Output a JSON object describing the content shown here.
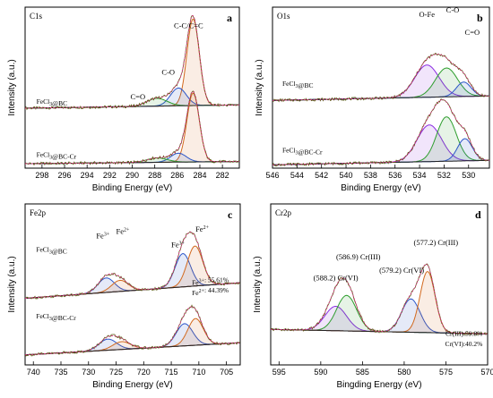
{
  "chart_data": [
    {
      "id": "a",
      "type": "line",
      "core_level": "C1s",
      "panel_letter": "a",
      "xlabel": "Binding Energy (eV)",
      "ylabel": "Intensity (a.u.)",
      "xlim": [
        299.5,
        280.5
      ],
      "xticks": [
        "298",
        "296",
        "294",
        "292",
        "290",
        "288",
        "286",
        "284",
        "282"
      ],
      "tick_values": [
        298,
        296,
        294,
        292,
        290,
        288,
        286,
        284,
        282
      ],
      "spectra": [
        {
          "sample": "FeCl3@BC",
          "offset": 0.52,
          "background": [
            0.02,
            0.05
          ],
          "peaks": [
            {
              "label": "C-C/C=C",
              "center": 284.6,
              "width": 0.55,
              "amp": 0.78,
              "color": "#d2691e"
            },
            {
              "label": "C-O",
              "center": 285.9,
              "width": 0.7,
              "amp": 0.16,
              "color": "#2b55c8"
            },
            {
              "label": "C=O",
              "center": 287.8,
              "width": 0.9,
              "amp": 0.07,
              "color": "#2e9e2e"
            }
          ]
        },
        {
          "sample": "FeCl3@BC-Cr",
          "offset": 0.02,
          "background": [
            0.02,
            0.04
          ],
          "peaks": [
            {
              "label": "C-C/C=C",
              "center": 284.6,
              "width": 0.55,
              "amp": 0.62,
              "color": "#d2691e"
            },
            {
              "label": "C-O",
              "center": 285.9,
              "width": 0.7,
              "amp": 0.08,
              "color": "#2b55c8"
            },
            {
              "label": "C=O",
              "center": 287.8,
              "width": 0.9,
              "amp": 0.04,
              "color": "#2e9e2e"
            }
          ]
        }
      ],
      "annotations": [
        {
          "text": "C-C/C=C",
          "x": 285.0,
          "y": 1.26
        },
        {
          "text": "C-O",
          "x": 286.8,
          "y": 0.84
        },
        {
          "text": "C=O",
          "x": 289.5,
          "y": 0.62
        }
      ],
      "sample_labels": [
        {
          "text": "FeCl3@BC",
          "x": 298.5,
          "y": 0.58
        },
        {
          "text": "FeCl3@BC-Cr",
          "x": 298.5,
          "y": 0.1
        }
      ]
    },
    {
      "id": "b",
      "type": "line",
      "core_level": "O1s",
      "panel_letter": "b",
      "xlabel": "Binding Energy (eV)",
      "ylabel": "Intensity (a.u.)",
      "xlim": [
        546,
        528.3
      ],
      "xticks": [
        "546",
        "544",
        "542",
        "540",
        "538",
        "536",
        "534",
        "532",
        "530"
      ],
      "tick_values": [
        546,
        544,
        542,
        540,
        538,
        536,
        534,
        532,
        530
      ],
      "spectra": [
        {
          "sample": "FeCl3@BC",
          "offset": 0.6,
          "background": [
            0.01,
            0.05
          ],
          "peaks": [
            {
              "label": "O-Fe",
              "center": 533.4,
              "width": 1.0,
              "amp": 0.29,
              "color": "#8a2be2"
            },
            {
              "label": "C-O",
              "center": 531.8,
              "width": 0.9,
              "amp": 0.26,
              "color": "#2e9e2e"
            },
            {
              "label": "C=O",
              "center": 530.4,
              "width": 0.6,
              "amp": 0.13,
              "color": "#2b55c8"
            }
          ]
        },
        {
          "sample": "FeCl3@BC-Cr",
          "offset": 0.02,
          "background": [
            0.01,
            0.05
          ],
          "peaks": [
            {
              "label": "O-Fe",
              "center": 533.2,
              "width": 1.0,
              "amp": 0.33,
              "color": "#8a2be2"
            },
            {
              "label": "C-O",
              "center": 531.8,
              "width": 0.8,
              "amp": 0.4,
              "color": "#2e9e2e"
            },
            {
              "label": "C=O",
              "center": 530.3,
              "width": 0.6,
              "amp": 0.2,
              "color": "#2b55c8"
            }
          ]
        }
      ],
      "annotations": [
        {
          "text": "O-Fe",
          "x": 533.4,
          "y": 1.36
        },
        {
          "text": "C-O",
          "x": 531.3,
          "y": 1.4
        },
        {
          "text": "C=O",
          "x": 529.7,
          "y": 1.2
        }
      ],
      "sample_labels": [
        {
          "text": "FeCl3@BC",
          "x": 545.2,
          "y": 0.74
        },
        {
          "text": "FeCl3@BC-Cr",
          "x": 545.2,
          "y": 0.14
        }
      ]
    },
    {
      "id": "c",
      "type": "line",
      "core_level": "Fe2p",
      "panel_letter": "c",
      "xlabel": "Binding Energy (eV)",
      "ylabel": "Intensity (a.u.)",
      "xlim": [
        741.5,
        702.5
      ],
      "xticks": [
        "740",
        "735",
        "730",
        "725",
        "720",
        "715",
        "710",
        "705"
      ],
      "tick_values": [
        740,
        735,
        730,
        725,
        720,
        715,
        710,
        705
      ],
      "spectra": [
        {
          "sample": "FeCl3@BC",
          "offset": 0.5,
          "background": [
            0.1,
            0.24
          ],
          "peaks": [
            {
              "label": "Fe3+",
              "center": 726.8,
              "width": 1.5,
              "amp": 0.13,
              "color": "#2b55c8"
            },
            {
              "label": "Fe2+",
              "center": 724.3,
              "width": 1.5,
              "amp": 0.1,
              "color": "#d2691e"
            },
            {
              "label": "Fe3+",
              "center": 712.9,
              "width": 1.4,
              "amp": 0.3,
              "color": "#2b55c8"
            },
            {
              "label": "Fe2+",
              "center": 710.7,
              "width": 1.4,
              "amp": 0.36,
              "color": "#d2691e"
            }
          ]
        },
        {
          "sample": "FeCl3@BC-Cr",
          "offset": 0.03,
          "background": [
            0.06,
            0.17
          ],
          "peaks": [
            {
              "label": "Fe3+",
              "center": 726.5,
              "width": 1.6,
              "amp": 0.1,
              "color": "#2b55c8"
            },
            {
              "label": "Fe2+",
              "center": 724.0,
              "width": 1.6,
              "amp": 0.07,
              "color": "#d2691e"
            },
            {
              "label": "Fe3+",
              "center": 712.6,
              "width": 1.5,
              "amp": 0.2,
              "color": "#2b55c8"
            },
            {
              "label": "Fe2+",
              "center": 710.6,
              "width": 1.4,
              "amp": 0.24,
              "color": "#d2691e"
            }
          ]
        }
      ],
      "annotations": [
        {
          "text": "Fe3+",
          "x": 727.4,
          "y": 1.14
        },
        {
          "text": "Fe2+",
          "x": 723.8,
          "y": 1.18
        },
        {
          "text": "Fe3+",
          "x": 713.8,
          "y": 1.06
        },
        {
          "text": "Fe2+",
          "x": 709.4,
          "y": 1.2
        }
      ],
      "sample_labels": [
        {
          "text": "FeCl3@BC",
          "x": 739.5,
          "y": 1.02
        },
        {
          "text": "FeCl3@BC-Cr",
          "x": 739.5,
          "y": 0.42
        }
      ],
      "stats": [
        {
          "text": "Fe3+: 55.61%",
          "x": 704.6,
          "y": 0.72
        },
        {
          "text": "Fe2+: 44.39%",
          "x": 704.6,
          "y": 0.63
        }
      ]
    },
    {
      "id": "d",
      "type": "line",
      "core_level": "Cr2p",
      "panel_letter": "d",
      "xlabel": "Bingding Energy (eV)",
      "ylabel": "Intensity (a.u.)",
      "xlim": [
        596,
        570
      ],
      "xticks": [
        "595",
        "590",
        "585",
        "580",
        "575",
        "570"
      ],
      "tick_values": [
        595,
        590,
        585,
        580,
        575,
        570
      ],
      "spectra": [
        {
          "sample": "",
          "offset": 0.22,
          "background": [
            0.1,
            0.06
          ],
          "peaks": [
            {
              "label": "Cr(VI)",
              "center": 588.2,
              "width": 1.3,
              "amp": 0.22,
              "color": "#8a2be2"
            },
            {
              "label": "Cr(III)",
              "center": 586.9,
              "width": 1.2,
              "amp": 0.32,
              "color": "#2e9e2e"
            },
            {
              "label": "Cr(VI)",
              "center": 579.2,
              "width": 1.1,
              "amp": 0.3,
              "color": "#2b55c8"
            },
            {
              "label": "Cr(III)",
              "center": 577.2,
              "width": 0.9,
              "amp": 0.55,
              "color": "#d2691e"
            }
          ]
        }
      ],
      "annotations": [
        {
          "text": "(588.2) Cr(VI)",
          "x": 588.2,
          "y": 0.76
        },
        {
          "text": "(586.9) Cr(III)",
          "x": 585.5,
          "y": 0.95
        },
        {
          "text": "(579.2) Cr(VI)",
          "x": 580.3,
          "y": 0.83
        },
        {
          "text": "(577.2) Cr(III)",
          "x": 576.2,
          "y": 1.08
        }
      ],
      "stats": [
        {
          "text": "Cr(III):59.8%",
          "x": 570.6,
          "y": 0.26
        },
        {
          "text": "Cr(VI):40.2%",
          "x": 570.6,
          "y": 0.17
        }
      ]
    }
  ]
}
